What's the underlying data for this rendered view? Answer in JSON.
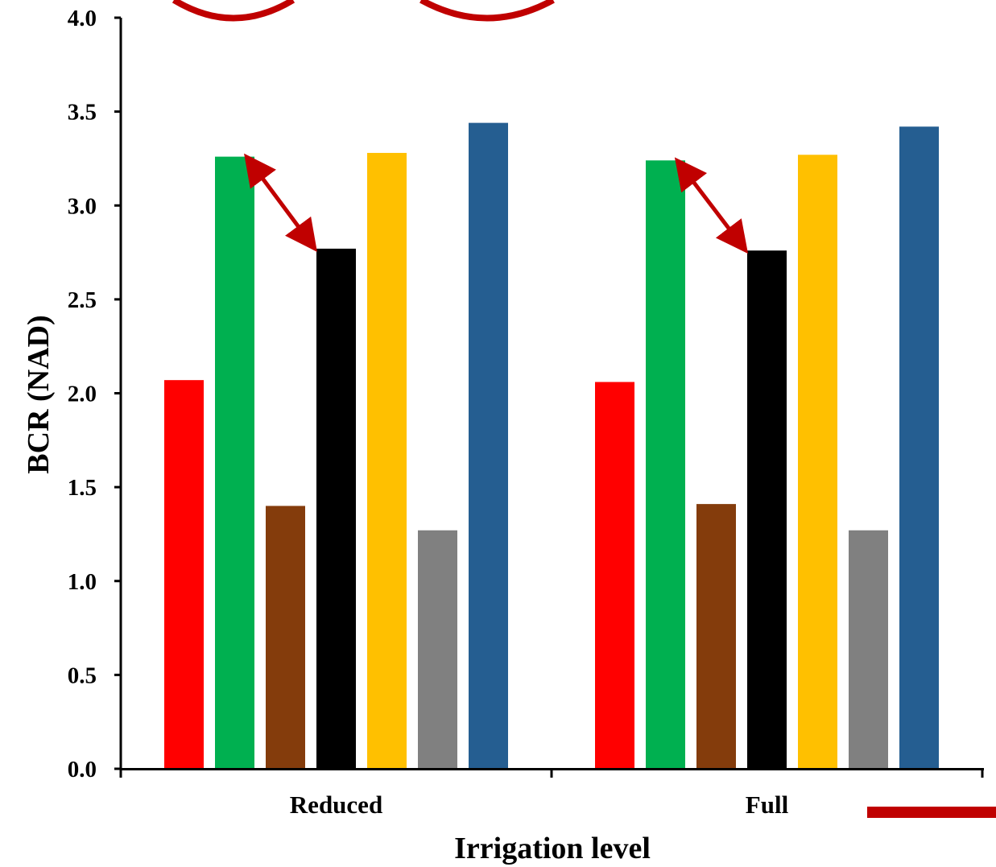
{
  "chart_data": {
    "type": "bar",
    "xlabel": "Irrigation level",
    "ylabel": "BCR (NAD)",
    "ylim": [
      0,
      4
    ],
    "yticks": [
      "0.0",
      "0.5",
      "1.0",
      "1.5",
      "2.0",
      "2.5",
      "3.0",
      "3.5",
      "4.0"
    ],
    "categories": [
      "Reduced",
      "Full"
    ],
    "grid": false,
    "legend": "none",
    "series": [
      {
        "color": "#FF0000",
        "values": [
          2.07,
          2.06
        ]
      },
      {
        "color": "#00B050",
        "values": [
          3.26,
          3.24
        ]
      },
      {
        "color": "#843C0C",
        "values": [
          1.4,
          1.41
        ]
      },
      {
        "color": "#000000",
        "values": [
          2.77,
          2.76
        ]
      },
      {
        "color": "#FFC000",
        "values": [
          3.28,
          3.27
        ]
      },
      {
        "color": "#808080",
        "values": [
          1.27,
          1.27
        ]
      },
      {
        "color": "#255E91",
        "values": [
          3.44,
          3.42
        ]
      }
    ],
    "annotations": [
      {
        "type": "double-arrow",
        "color": "#C00000",
        "category": "Reduced",
        "from_series": 1,
        "to_series": 3
      },
      {
        "type": "double-arrow",
        "color": "#C00000",
        "category": "Full",
        "from_series": 1,
        "to_series": 3
      }
    ]
  }
}
